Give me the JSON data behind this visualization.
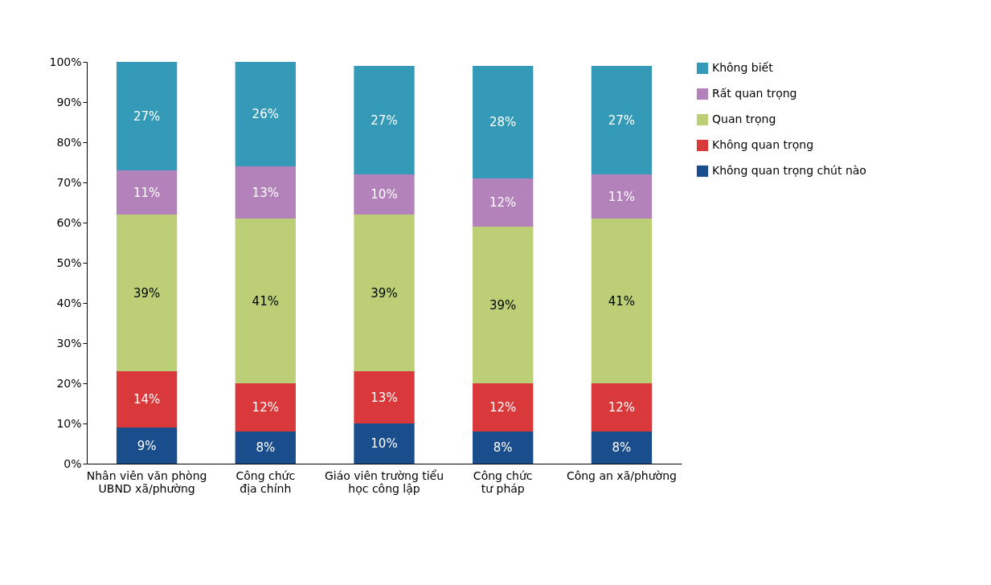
{
  "chart_data": {
    "type": "bar",
    "stacked": true,
    "grid": false,
    "legend": "right",
    "categories": [
      "Nhân viên văn phòng UBND xã/phường",
      "Công chức địa chính",
      "Giáo viên trường tiểu học công lập",
      "Công chức tư pháp",
      "Công an xã/phường"
    ],
    "ylim": [
      0,
      100
    ],
    "yticks": [
      {
        "value": 0,
        "label": "0%"
      },
      {
        "value": 10,
        "label": "10%"
      },
      {
        "value": 20,
        "label": "20%"
      },
      {
        "value": 30,
        "label": "30%"
      },
      {
        "value": 40,
        "label": "40%"
      },
      {
        "value": 50,
        "label": "50%"
      },
      {
        "value": 60,
        "label": "60%"
      },
      {
        "value": 70,
        "label": "70%"
      },
      {
        "value": 80,
        "label": "80%"
      },
      {
        "value": 90,
        "label": "90%"
      },
      {
        "value": 100,
        "label": "100%"
      }
    ],
    "series": [
      {
        "name": "Không quan trọng chút nào",
        "color": "#1a4d8c",
        "values": [
          9,
          8,
          10,
          8,
          8
        ],
        "value_labels": [
          "9%",
          "8%",
          "10%",
          "8%",
          "8%"
        ]
      },
      {
        "name": "Không quan trọng",
        "color": "#d9393b",
        "values": [
          14,
          12,
          13,
          12,
          12
        ],
        "value_labels": [
          "14%",
          "12%",
          "13%",
          "12%",
          "12%"
        ]
      },
      {
        "name": "Quan trọng",
        "color": "#bccf76",
        "values": [
          39,
          41,
          39,
          39,
          41
        ],
        "value_labels": [
          "39%",
          "41%",
          "39%",
          "39%",
          "41%"
        ]
      },
      {
        "name": "Rất quan trọng",
        "color": "#b382bb",
        "values": [
          11,
          13,
          10,
          12,
          11
        ],
        "value_labels": [
          "11%",
          "13%",
          "10%",
          "12%",
          "11%"
        ]
      },
      {
        "name": "Không biết",
        "color": "#359ab8",
        "values": [
          27,
          26,
          27,
          28,
          27
        ],
        "value_labels": [
          "27%",
          "26%",
          "27%",
          "28%",
          "27%"
        ]
      }
    ]
  }
}
